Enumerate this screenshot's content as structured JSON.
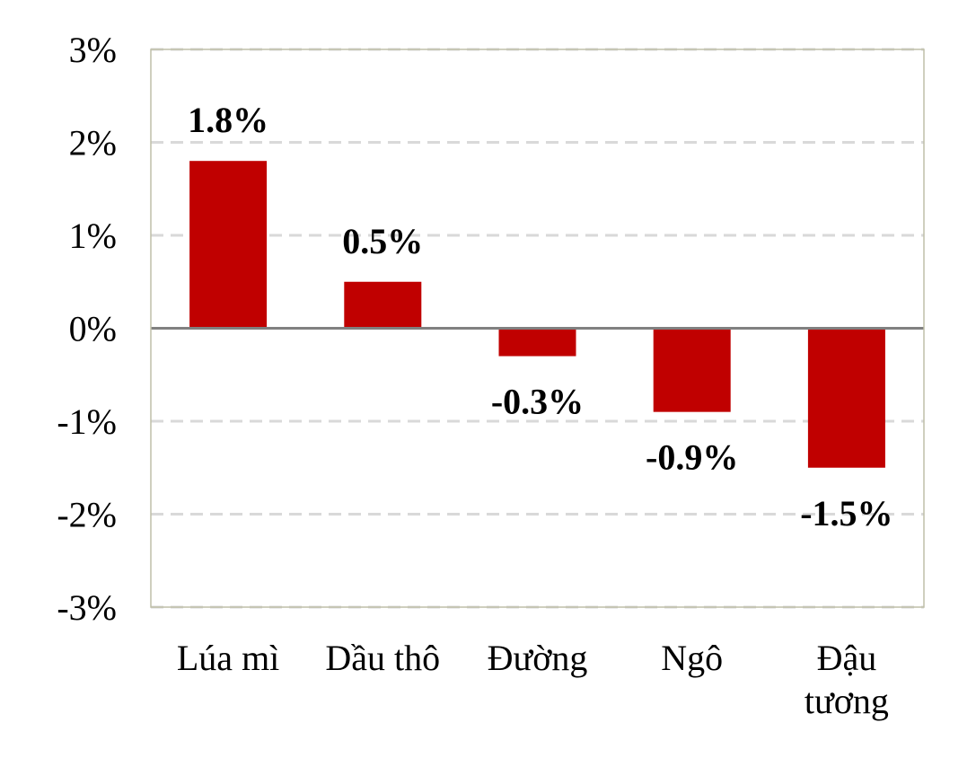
{
  "chart_data": {
    "type": "bar",
    "categories": [
      [
        "Lúa mì"
      ],
      [
        "Dầu thô"
      ],
      [
        "Đường"
      ],
      [
        "Ngô"
      ],
      [
        "Đậu",
        "tương"
      ]
    ],
    "values": [
      1.8,
      0.5,
      -0.3,
      -0.9,
      -1.5
    ],
    "data_labels": [
      "1.8%",
      "0.5%",
      "-0.3%",
      "-0.9%",
      "-1.5%"
    ],
    "y_ticks": [
      3,
      2,
      1,
      0,
      -1,
      -2,
      -3
    ],
    "y_tick_labels": [
      "3%",
      "2%",
      "1%",
      "0%",
      "-1%",
      "-2%",
      "-3%"
    ],
    "ylim": [
      -3,
      3
    ],
    "title": "",
    "xlabel": "",
    "ylabel": "",
    "grid": true,
    "grid_style": "dashed",
    "bar_color": "#C00000",
    "grid_color": "#D9D9D9",
    "zero_line_color": "#808080",
    "border_color": "#BFBFA8"
  }
}
